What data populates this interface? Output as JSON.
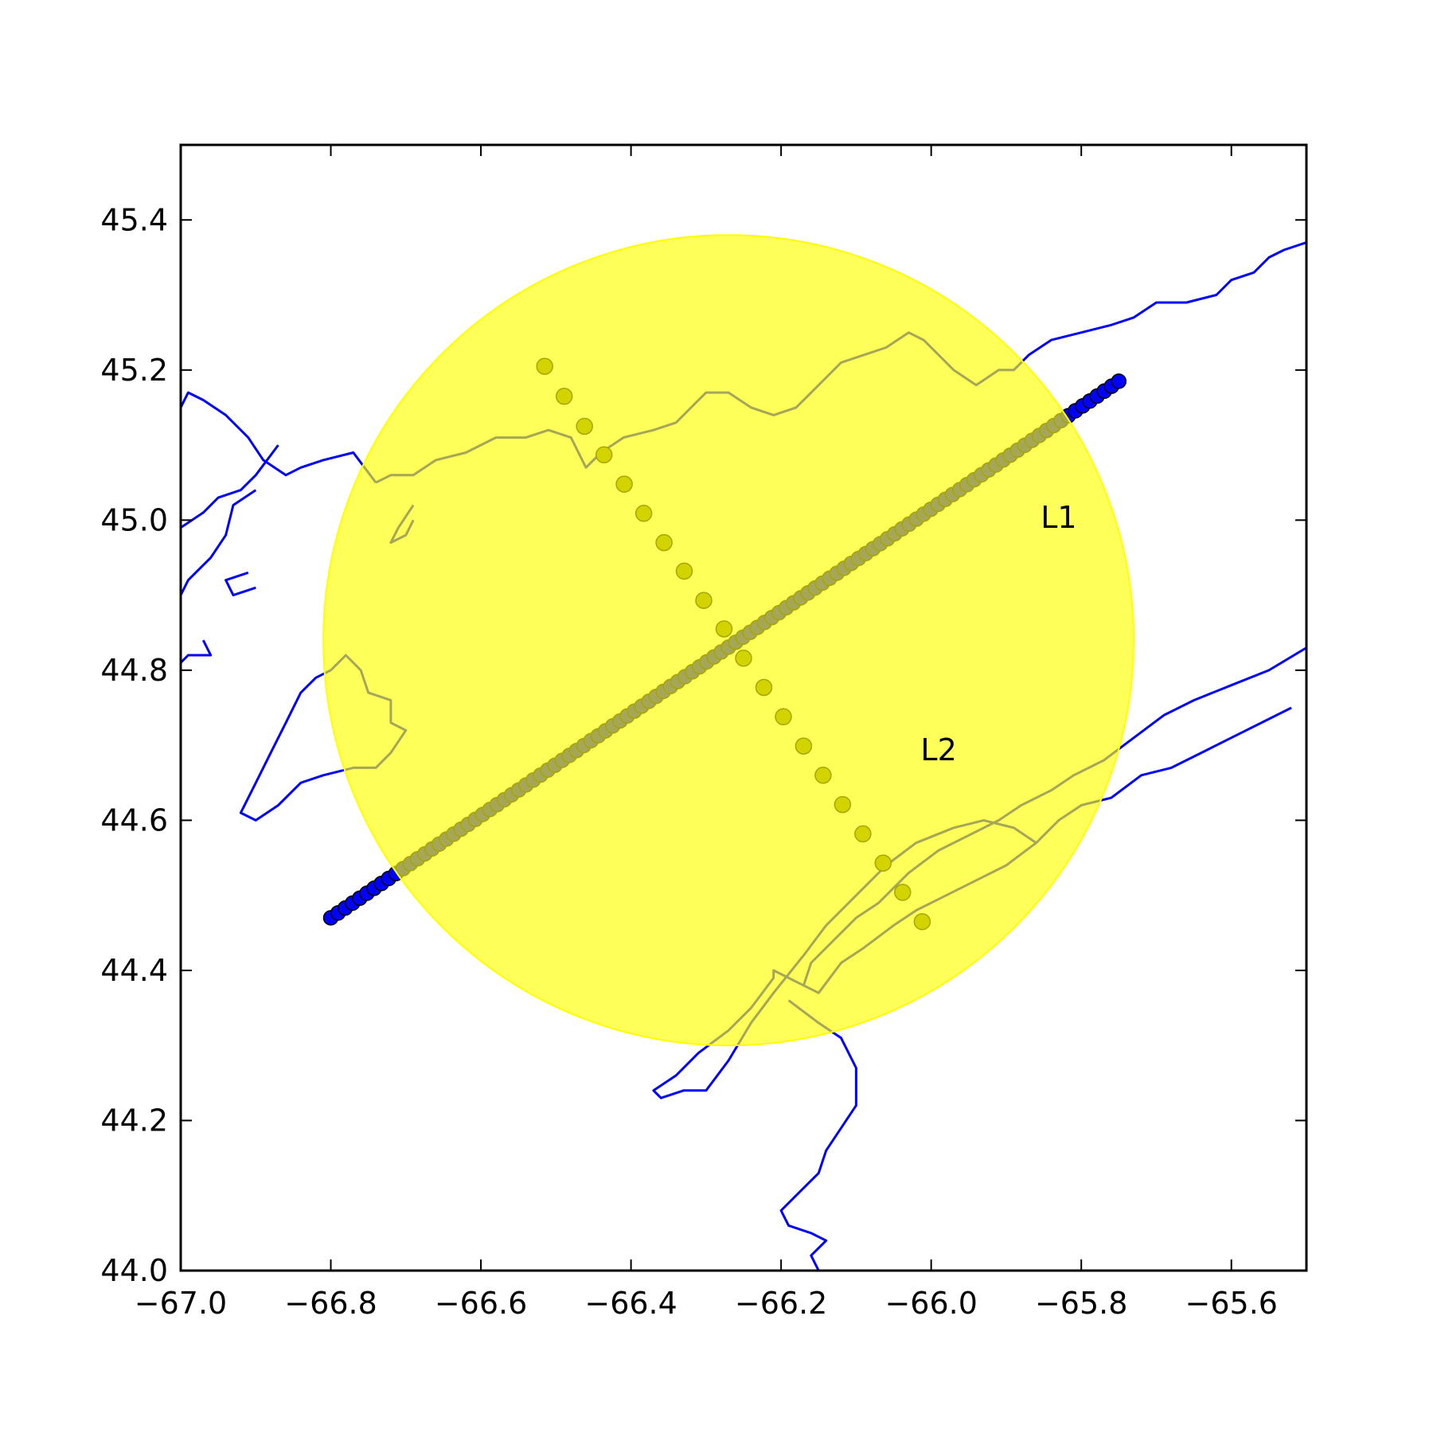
{
  "chart_data": {
    "type": "scatter",
    "title": "",
    "xlabel": "",
    "ylabel": "",
    "xlim": [
      -67.0,
      -65.5
    ],
    "ylim": [
      44.0,
      45.5
    ],
    "x_ticks": [
      "−67.0",
      "−66.8",
      "−66.6",
      "−66.4",
      "−66.2",
      "−66.0",
      "−65.8",
      "−65.6"
    ],
    "x_tick_values": [
      -67.0,
      -66.8,
      -66.6,
      -66.4,
      -66.2,
      -66.0,
      -65.8,
      -65.6
    ],
    "y_ticks": [
      "44.0",
      "44.2",
      "44.4",
      "44.6",
      "44.8",
      "45.0",
      "45.2",
      "45.4"
    ],
    "y_tick_values": [
      44.0,
      44.2,
      44.4,
      44.6,
      44.8,
      45.0,
      45.2,
      45.4
    ],
    "grid": false,
    "circle": {
      "center": [
        -66.27,
        44.84
      ],
      "radius_deg": 0.54,
      "color": "#ffff00",
      "opacity": 0.65
    },
    "annotations": [
      {
        "text": "L1",
        "x": -65.83,
        "y": 44.99
      },
      {
        "text": "L2",
        "x": -65.99,
        "y": 44.68
      }
    ],
    "series": [
      {
        "name": "L1",
        "marker_color": "#0000ff",
        "start": [
          -66.8,
          44.47
        ],
        "end": [
          -65.75,
          45.185
        ],
        "count": 110
      },
      {
        "name": "L2",
        "marker_color": "#808000",
        "x": [
          -66.515,
          -66.489,
          -66.462,
          -66.436,
          -66.409,
          -66.383,
          -66.356,
          -66.329,
          -66.303,
          -66.276,
          -66.25,
          -66.223,
          -66.197,
          -66.17,
          -66.144,
          -66.118,
          -66.091,
          -66.064,
          -66.038,
          -66.012
        ],
        "y": [
          45.205,
          45.165,
          45.125,
          45.087,
          45.048,
          45.009,
          44.97,
          44.932,
          44.893,
          44.855,
          44.816,
          44.777,
          44.738,
          44.699,
          44.66,
          44.621,
          44.582,
          44.543,
          44.504,
          44.465
        ]
      }
    ],
    "coastline_color": "#0000ff",
    "coastlines": [
      [
        [
          -65.5,
          45.37
        ],
        [
          -65.53,
          45.36
        ],
        [
          -65.55,
          45.35
        ],
        [
          -65.57,
          45.33
        ],
        [
          -65.6,
          45.32
        ],
        [
          -65.62,
          45.3
        ],
        [
          -65.66,
          45.29
        ],
        [
          -65.7,
          45.29
        ],
        [
          -65.73,
          45.27
        ],
        [
          -65.76,
          45.26
        ],
        [
          -65.8,
          45.25
        ],
        [
          -65.84,
          45.24
        ],
        [
          -65.87,
          45.22
        ],
        [
          -65.89,
          45.2
        ],
        [
          -65.91,
          45.2
        ],
        [
          -65.94,
          45.18
        ],
        [
          -65.97,
          45.2
        ],
        [
          -65.99,
          45.22
        ],
        [
          -66.01,
          45.24
        ],
        [
          -66.03,
          45.25
        ],
        [
          -66.06,
          45.23
        ],
        [
          -66.09,
          45.22
        ],
        [
          -66.12,
          45.21
        ],
        [
          -66.15,
          45.18
        ],
        [
          -66.18,
          45.15
        ],
        [
          -66.21,
          45.14
        ],
        [
          -66.24,
          45.15
        ],
        [
          -66.27,
          45.17
        ],
        [
          -66.3,
          45.17
        ],
        [
          -66.32,
          45.15
        ],
        [
          -66.34,
          45.13
        ],
        [
          -66.37,
          45.12
        ],
        [
          -66.41,
          45.11
        ],
        [
          -66.44,
          45.09
        ],
        [
          -66.46,
          45.07
        ],
        [
          -66.48,
          45.11
        ],
        [
          -66.51,
          45.12
        ],
        [
          -66.54,
          45.11
        ],
        [
          -66.58,
          45.11
        ],
        [
          -66.62,
          45.09
        ],
        [
          -66.66,
          45.08
        ],
        [
          -66.69,
          45.06
        ],
        [
          -66.72,
          45.06
        ],
        [
          -66.74,
          45.05
        ]
      ],
      [
        [
          -66.74,
          45.05
        ],
        [
          -66.77,
          45.09
        ],
        [
          -66.81,
          45.08
        ],
        [
          -66.84,
          45.07
        ],
        [
          -66.86,
          45.06
        ],
        [
          -66.89,
          45.08
        ],
        [
          -66.91,
          45.11
        ],
        [
          -66.94,
          45.14
        ],
        [
          -66.97,
          45.16
        ],
        [
          -66.99,
          45.17
        ],
        [
          -67.0,
          45.15
        ]
      ],
      [
        [
          -66.87,
          45.1
        ],
        [
          -66.9,
          45.06
        ],
        [
          -66.92,
          45.04
        ],
        [
          -66.95,
          45.03
        ],
        [
          -66.97,
          45.01
        ],
        [
          -67.0,
          44.99
        ]
      ],
      [
        [
          -66.9,
          45.04
        ],
        [
          -66.93,
          45.02
        ],
        [
          -66.94,
          44.98
        ],
        [
          -66.96,
          44.95
        ],
        [
          -66.99,
          44.92
        ],
        [
          -67.0,
          44.9
        ]
      ],
      [
        [
          -67.0,
          44.81
        ],
        [
          -66.99,
          44.82
        ],
        [
          -66.96,
          44.82
        ],
        [
          -66.97,
          44.84
        ]
      ],
      [
        [
          -66.91,
          44.93
        ],
        [
          -66.94,
          44.92
        ],
        [
          -66.93,
          44.9
        ],
        [
          -66.9,
          44.91
        ]
      ],
      [
        [
          -66.69,
          45.02
        ],
        [
          -66.71,
          44.99
        ],
        [
          -66.72,
          44.97
        ],
        [
          -66.7,
          44.98
        ],
        [
          -66.69,
          45.0
        ]
      ],
      [
        [
          -66.8,
          44.8
        ],
        [
          -66.78,
          44.82
        ],
        [
          -66.76,
          44.8
        ],
        [
          -66.75,
          44.77
        ],
        [
          -66.72,
          44.76
        ],
        [
          -66.72,
          44.73
        ],
        [
          -66.7,
          44.72
        ],
        [
          -66.72,
          44.69
        ],
        [
          -66.74,
          44.67
        ],
        [
          -66.77,
          44.67
        ],
        [
          -66.81,
          44.66
        ],
        [
          -66.84,
          44.65
        ],
        [
          -66.87,
          44.62
        ],
        [
          -66.9,
          44.6
        ],
        [
          -66.92,
          44.61
        ],
        [
          -66.9,
          44.65
        ],
        [
          -66.88,
          44.69
        ],
        [
          -66.86,
          44.73
        ],
        [
          -66.84,
          44.77
        ],
        [
          -66.82,
          44.79
        ],
        [
          -66.8,
          44.8
        ]
      ],
      [
        [
          -65.5,
          44.83
        ],
        [
          -65.55,
          44.8
        ],
        [
          -65.6,
          44.78
        ],
        [
          -65.65,
          44.76
        ],
        [
          -65.69,
          44.74
        ],
        [
          -65.73,
          44.71
        ],
        [
          -65.77,
          44.68
        ],
        [
          -65.81,
          44.66
        ],
        [
          -65.84,
          44.64
        ],
        [
          -65.88,
          44.62
        ],
        [
          -65.91,
          44.6
        ],
        [
          -65.95,
          44.58
        ],
        [
          -65.99,
          44.56
        ],
        [
          -66.03,
          44.53
        ],
        [
          -66.07,
          44.49
        ],
        [
          -66.1,
          44.47
        ],
        [
          -66.13,
          44.44
        ],
        [
          -66.16,
          44.41
        ],
        [
          -66.17,
          44.38
        ],
        [
          -66.15,
          44.37
        ],
        [
          -66.12,
          44.41
        ],
        [
          -66.09,
          44.43
        ],
        [
          -66.05,
          44.46
        ],
        [
          -66.02,
          44.48
        ],
        [
          -65.98,
          44.5
        ],
        [
          -65.94,
          44.52
        ],
        [
          -65.9,
          44.54
        ],
        [
          -65.86,
          44.57
        ],
        [
          -65.83,
          44.6
        ],
        [
          -65.8,
          44.62
        ],
        [
          -65.76,
          44.63
        ],
        [
          -65.72,
          44.66
        ],
        [
          -65.68,
          44.67
        ],
        [
          -65.64,
          44.69
        ],
        [
          -65.6,
          44.71
        ],
        [
          -65.56,
          44.73
        ],
        [
          -65.52,
          44.75
        ]
      ],
      [
        [
          -65.86,
          44.57
        ],
        [
          -65.89,
          44.59
        ],
        [
          -65.93,
          44.6
        ],
        [
          -65.97,
          44.59
        ],
        [
          -66.02,
          44.57
        ],
        [
          -66.06,
          44.54
        ],
        [
          -66.1,
          44.5
        ],
        [
          -66.14,
          44.46
        ],
        [
          -66.17,
          44.42
        ],
        [
          -66.21,
          44.37
        ],
        [
          -66.24,
          44.33
        ],
        [
          -66.27,
          44.28
        ],
        [
          -66.3,
          44.24
        ],
        [
          -66.33,
          44.24
        ],
        [
          -66.36,
          44.23
        ],
        [
          -66.37,
          44.24
        ],
        [
          -66.34,
          44.26
        ],
        [
          -66.31,
          44.29
        ],
        [
          -66.27,
          44.32
        ],
        [
          -66.24,
          44.35
        ],
        [
          -66.21,
          44.39
        ],
        [
          -66.21,
          44.4
        ],
        [
          -66.17,
          44.38
        ]
      ],
      [
        [
          -66.19,
          44.36
        ],
        [
          -66.15,
          44.33
        ],
        [
          -66.12,
          44.31
        ],
        [
          -66.1,
          44.27
        ],
        [
          -66.1,
          44.22
        ],
        [
          -66.12,
          44.19
        ],
        [
          -66.14,
          44.16
        ],
        [
          -66.15,
          44.13
        ],
        [
          -66.18,
          44.1
        ],
        [
          -66.2,
          44.08
        ],
        [
          -66.19,
          44.06
        ],
        [
          -66.16,
          44.05
        ],
        [
          -66.14,
          44.04
        ],
        [
          -66.16,
          44.02
        ],
        [
          -66.15,
          44.0
        ]
      ]
    ]
  }
}
